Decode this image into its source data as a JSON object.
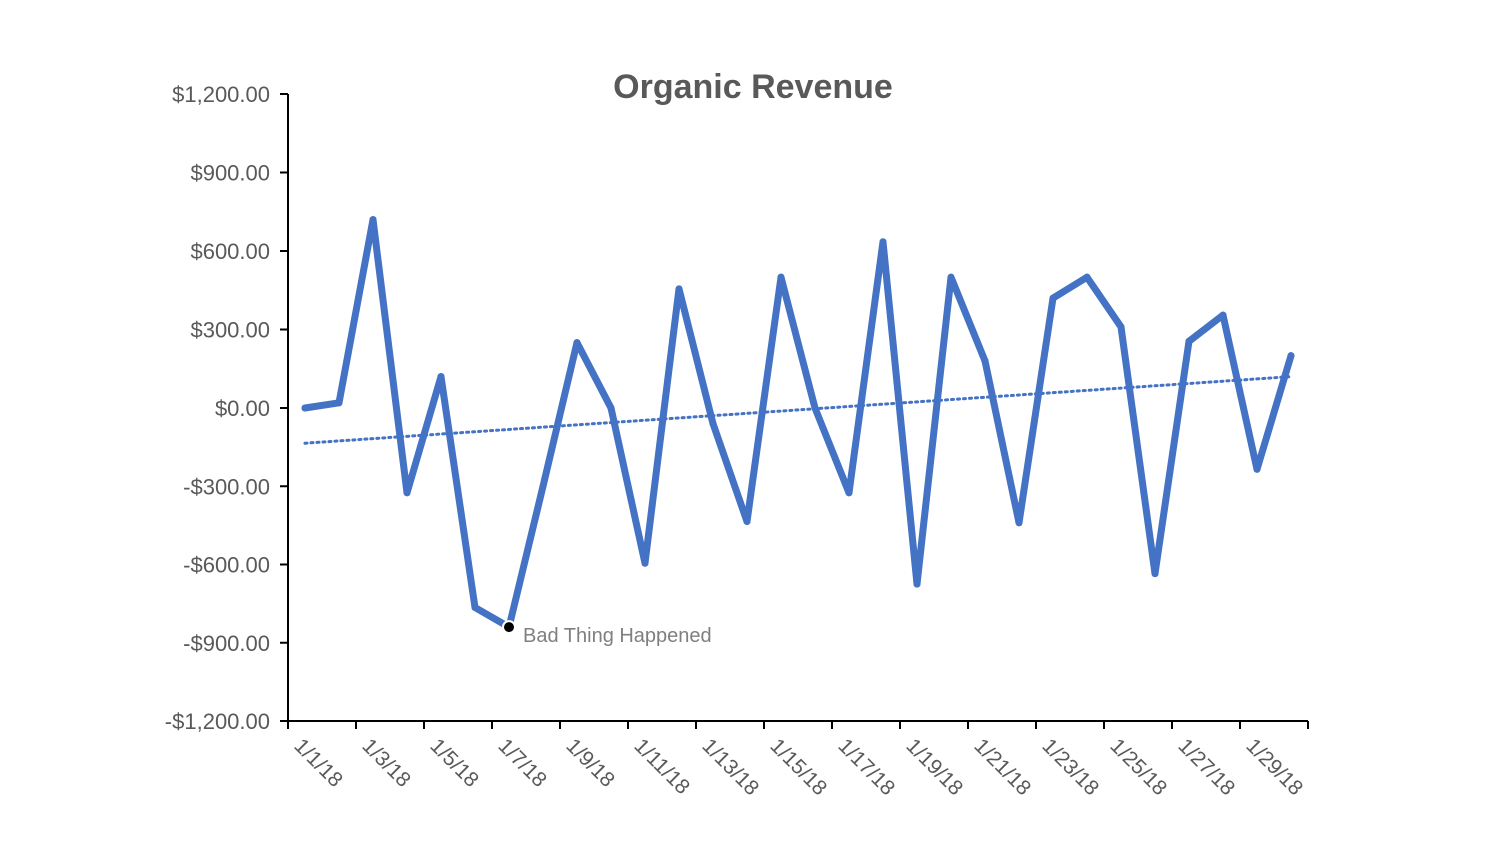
{
  "chart_data": {
    "type": "line",
    "title": "Organic Revenue",
    "xlabel": "",
    "ylabel": "",
    "x": [
      "1/1/18",
      "1/2/18",
      "1/3/18",
      "1/4/18",
      "1/5/18",
      "1/6/18",
      "1/7/18",
      "1/8/18",
      "1/9/18",
      "1/10/18",
      "1/11/18",
      "1/12/18",
      "1/13/18",
      "1/14/18",
      "1/15/18",
      "1/16/18",
      "1/17/18",
      "1/18/18",
      "1/19/18",
      "1/20/18",
      "1/21/18",
      "1/22/18",
      "1/23/18",
      "1/24/18",
      "1/25/18",
      "1/26/18",
      "1/27/18",
      "1/28/18",
      "1/29/18",
      "1/30/18"
    ],
    "x_tick_labels": [
      "1/1/18",
      "1/3/18",
      "1/5/18",
      "1/7/18",
      "1/9/18",
      "1/11/18",
      "1/13/18",
      "1/15/18",
      "1/17/18",
      "1/19/18",
      "1/21/18",
      "1/23/18",
      "1/25/18",
      "1/27/18",
      "1/29/18"
    ],
    "y_tick_labels": [
      "$1,200.00",
      "$900.00",
      "$600.00",
      "$300.00",
      "$0.00",
      "-$300.00",
      "-$600.00",
      "-$900.00",
      "-$1,200.00"
    ],
    "y_ticks": [
      1200,
      900,
      600,
      300,
      0,
      -300,
      -600,
      -900,
      -1200
    ],
    "ylim": [
      -1200,
      1200
    ],
    "series": [
      {
        "values": [
          0,
          20,
          720,
          -325,
          120,
          -765,
          -840,
          -300,
          250,
          0,
          -595,
          455,
          -60,
          -435,
          500,
          0,
          -325,
          635,
          -675,
          500,
          180,
          -440,
          420,
          500,
          310,
          -635,
          255,
          355,
          -235,
          200
        ],
        "color": "#4472C4"
      }
    ],
    "trendline": {
      "type": "linear",
      "start": -135,
      "end": 120,
      "color": "#4472C4",
      "style": "dotted"
    },
    "annotations": [
      {
        "text": "Bad Thing Happened",
        "x": "1/7/18",
        "y": -840
      }
    ],
    "grid": false,
    "legend": "none"
  }
}
